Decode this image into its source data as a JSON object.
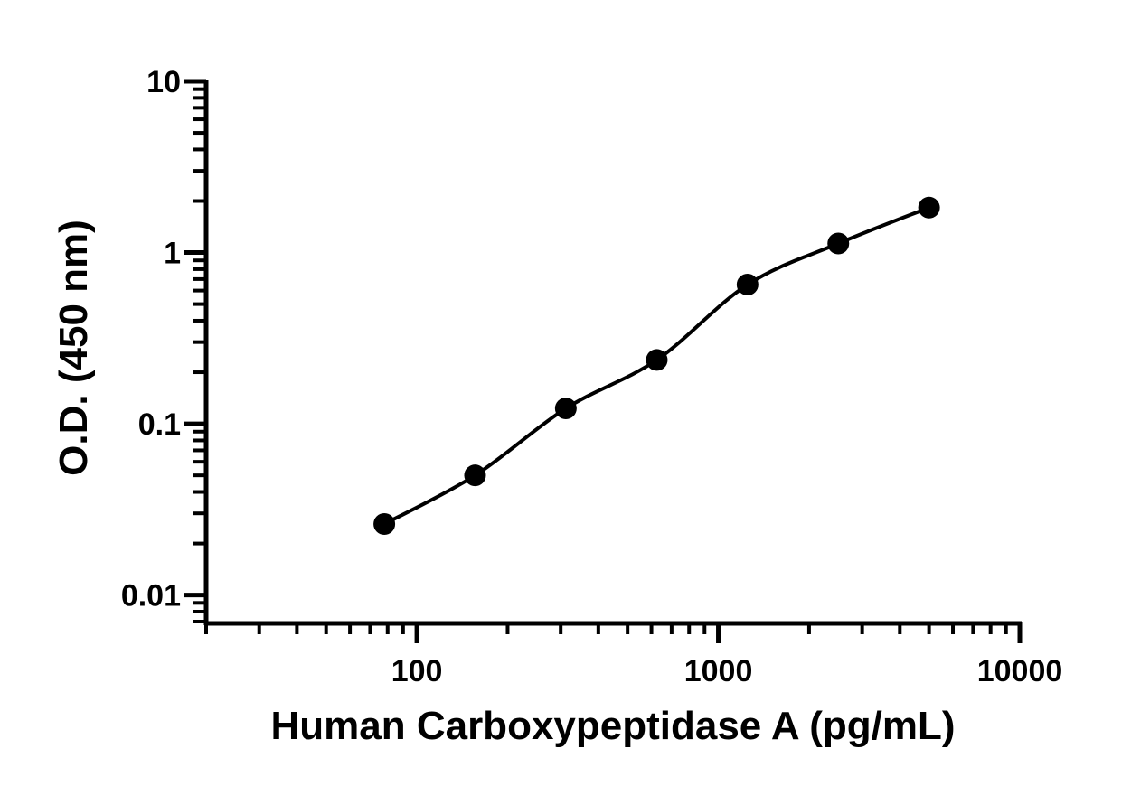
{
  "chart_data": {
    "type": "scatter",
    "title": "",
    "xlabel": "Human Carboxypeptidase A (pg/mL)",
    "ylabel": "O.D. (450 nm)",
    "xscale": "log",
    "yscale": "log",
    "xlim": [
      20,
      10000
    ],
    "ylim": [
      0.007,
      10
    ],
    "x_ticks": [
      100,
      1000,
      10000
    ],
    "x_tick_labels": [
      "100",
      "1000",
      "10000"
    ],
    "y_ticks": [
      0.01,
      0.1,
      1,
      10
    ],
    "y_tick_labels": [
      "0.01",
      "0.1",
      "1",
      "10"
    ],
    "grid": false,
    "legend": "none",
    "marker_color": "#000000",
    "series": [
      {
        "x": [
          78,
          156,
          312,
          625,
          1250,
          2500,
          5000
        ],
        "y": [
          0.026,
          0.05,
          0.123,
          0.236,
          0.65,
          1.13,
          1.83
        ]
      }
    ],
    "fit_curve": true
  }
}
